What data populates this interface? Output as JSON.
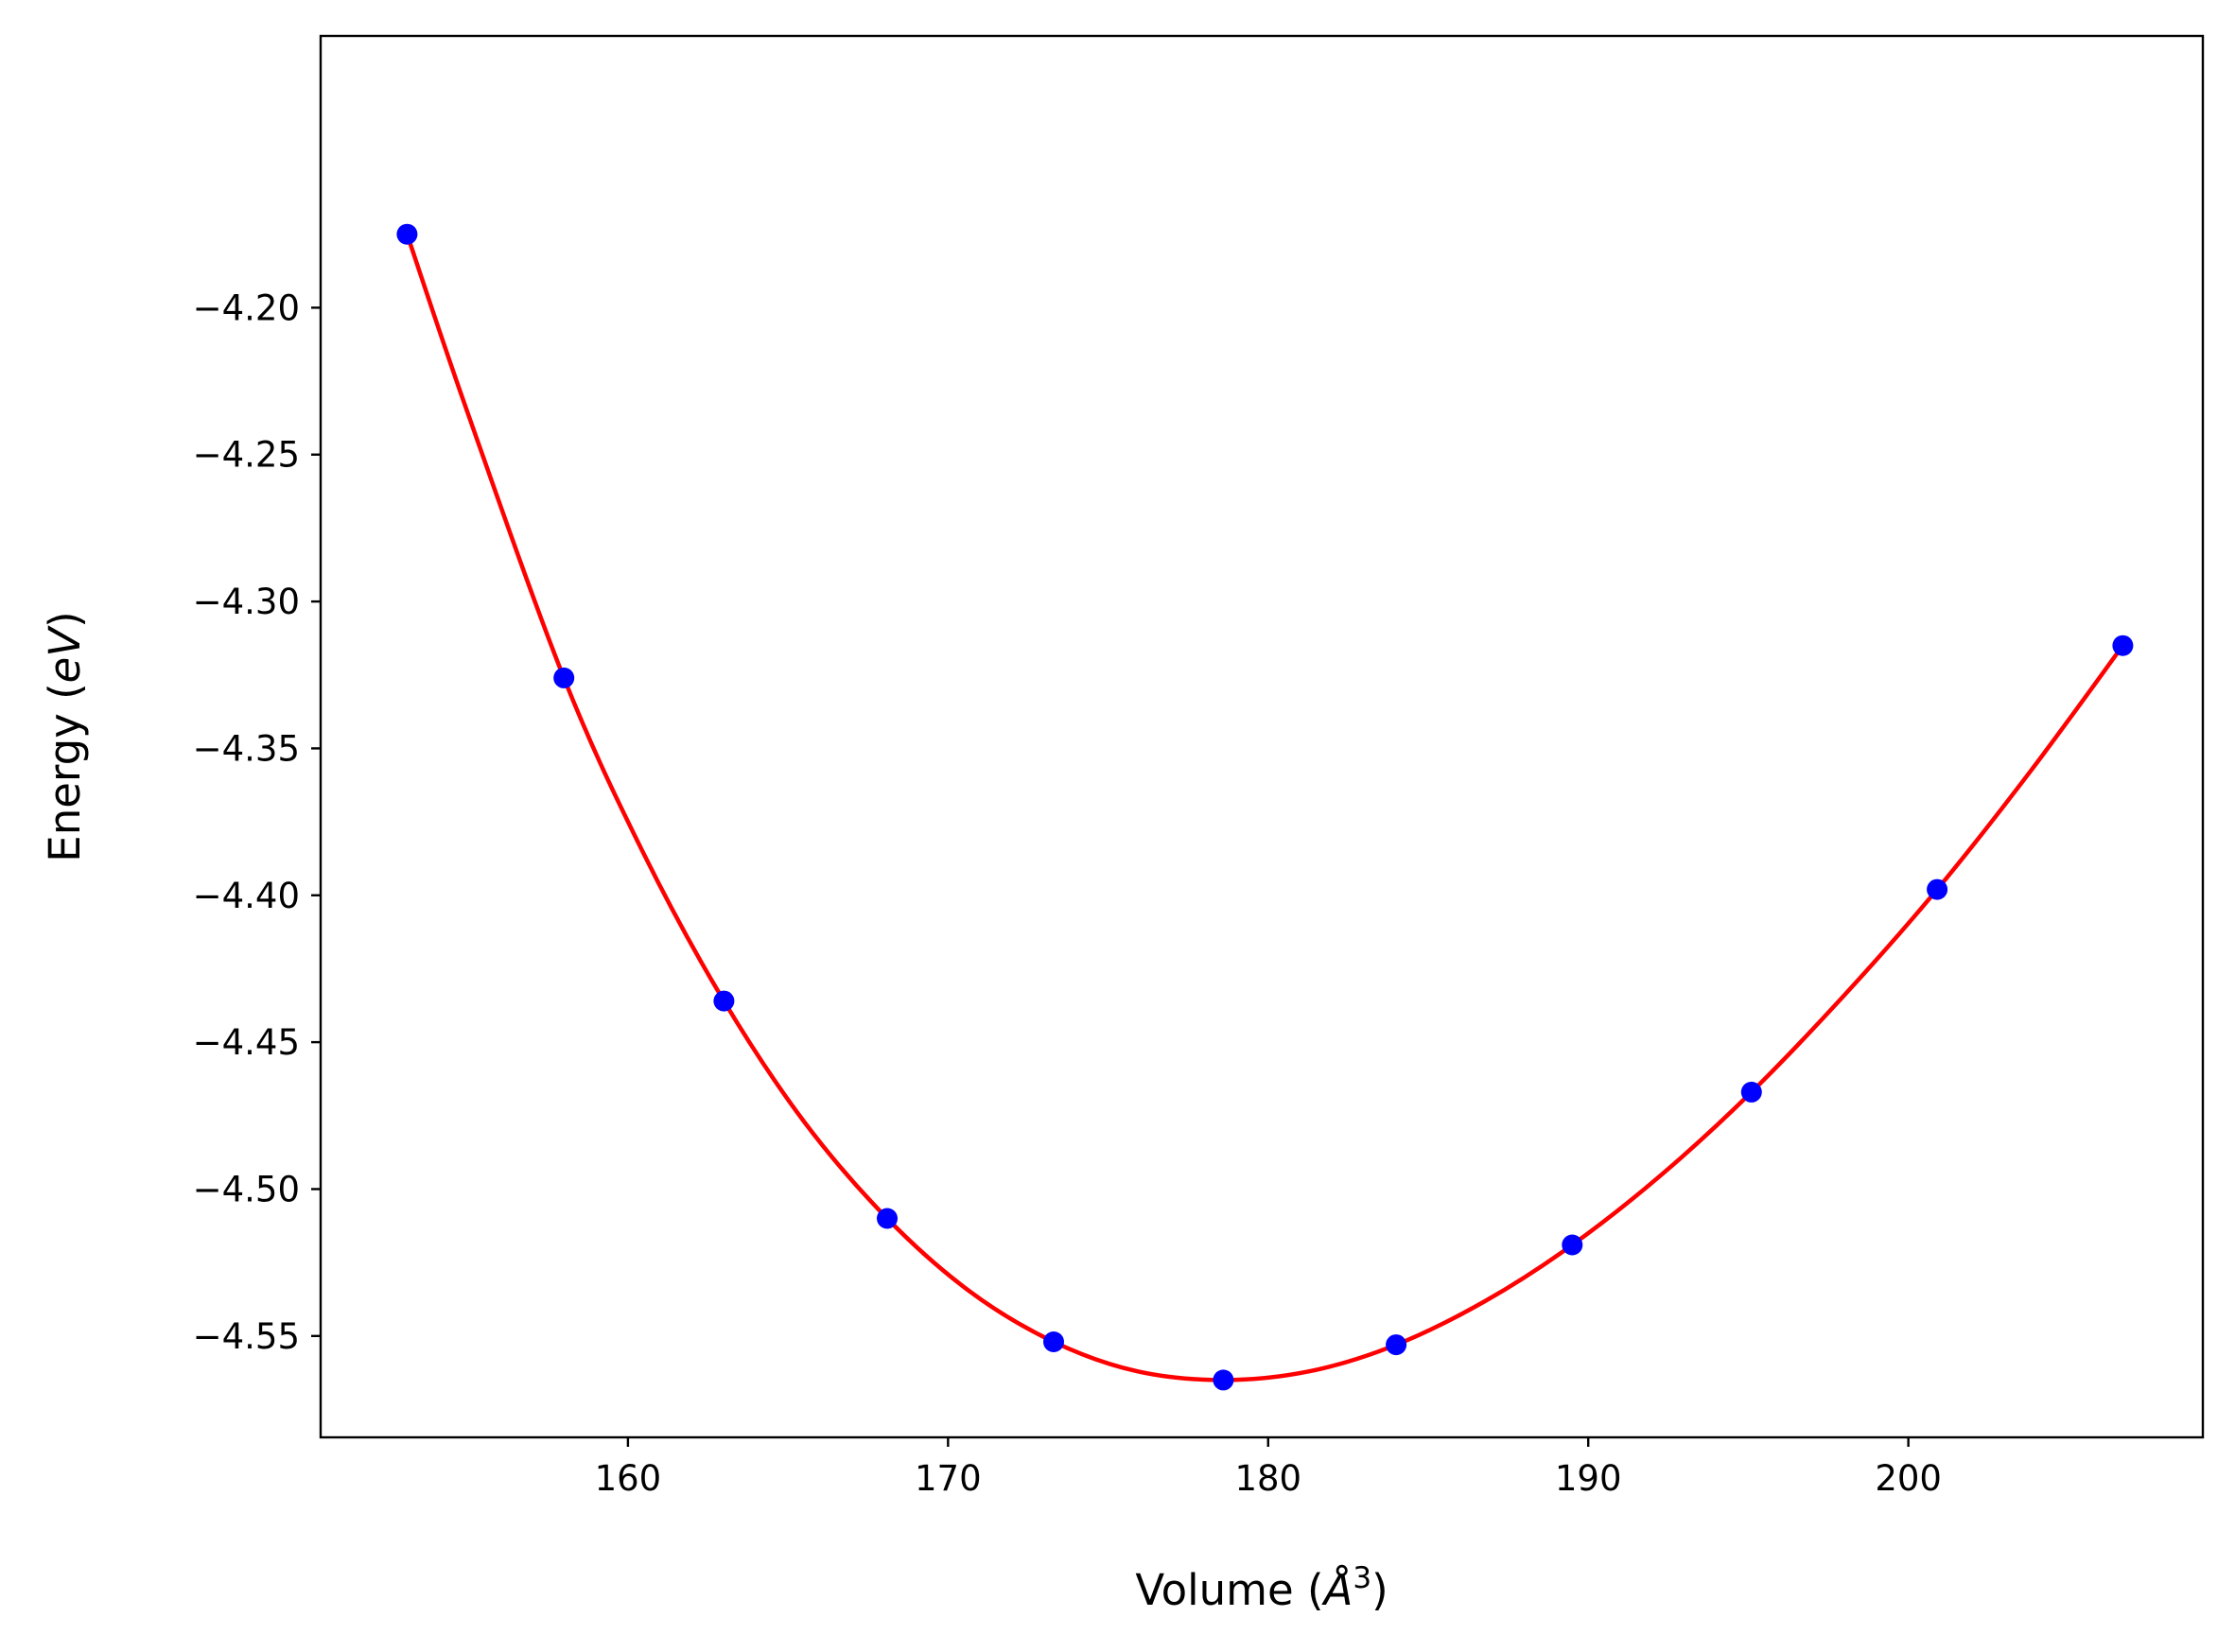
{
  "chart_data": {
    "type": "scatter",
    "title": "",
    "xlabel": "Volume ($\\AA^3$)",
    "xlabel_parts": {
      "prefix": "Volume (",
      "symbol": "Å",
      "superscript": "3",
      "suffix": ")"
    },
    "ylabel": "Energy ($eV$)",
    "ylabel_parts": {
      "prefix": "Energy (",
      "italic": "eV",
      "suffix": ")"
    },
    "xlim": [
      150.4,
      209.2
    ],
    "ylim": [
      -4.5845,
      -4.1075
    ],
    "xticks": [
      160,
      170,
      180,
      190,
      200
    ],
    "xtick_labels": [
      "160",
      "170",
      "180",
      "190",
      "200"
    ],
    "yticks": [
      -4.2,
      -4.25,
      -4.3,
      -4.35,
      -4.4,
      -4.45,
      -4.5,
      -4.55
    ],
    "ytick_labels": [
      "−4.20",
      "−4.25",
      "−4.30",
      "−4.35",
      "−4.40",
      "−4.45",
      "−4.50",
      "−4.55"
    ],
    "grid": false,
    "legend": "none",
    "series": [
      {
        "kind": "points",
        "color": "#0000ff",
        "x": [
          153.1,
          158.0,
          163.0,
          168.1,
          173.3,
          178.6,
          184.0,
          189.5,
          195.1,
          200.9,
          206.7
        ],
        "y": [
          -4.175,
          -4.326,
          -4.436,
          -4.51,
          -4.552,
          -4.565,
          -4.553,
          -4.519,
          -4.467,
          -4.398,
          -4.315
        ]
      },
      {
        "kind": "fit-curve",
        "color": "#ff0000",
        "x": [
          153.1,
          155.0,
          158.0,
          160.5,
          163.0,
          165.5,
          168.1,
          170.7,
          173.3,
          175.9,
          178.6,
          181.3,
          184.0,
          186.8,
          189.5,
          192.3,
          195.1,
          198.0,
          200.9,
          203.8,
          206.7
        ],
        "y": [
          -4.175,
          -4.236,
          -4.326,
          -4.386,
          -4.436,
          -4.477,
          -4.51,
          -4.535,
          -4.552,
          -4.562,
          -4.565,
          -4.562,
          -4.553,
          -4.538,
          -4.519,
          -4.495,
          -4.467,
          -4.434,
          -4.398,
          -4.358,
          -4.315
        ]
      }
    ]
  }
}
